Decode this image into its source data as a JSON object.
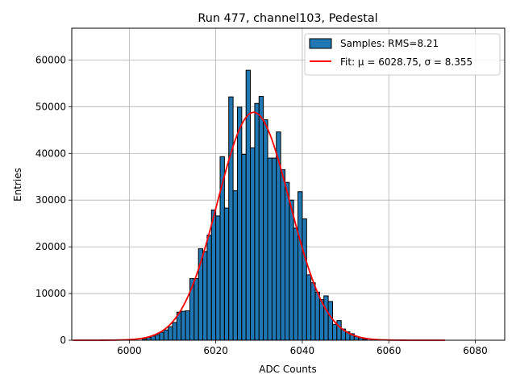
{
  "chart_data": {
    "type": "bar",
    "title": "Run 477, channel103, Pedestal",
    "xlabel": "ADC Counts",
    "ylabel": "Entries",
    "xlim": [
      5986.7,
      6086.8
    ],
    "ylim": [
      0,
      66800
    ],
    "xticks": [
      6000,
      6020,
      6040,
      6060,
      6080
    ],
    "yticks": [
      0,
      10000,
      20000,
      30000,
      40000,
      50000,
      60000
    ],
    "grid": true,
    "legend_position": "top-right",
    "legend": [
      {
        "label": "Samples: RMS=8.21",
        "kind": "patch",
        "color": "#1f77b4"
      },
      {
        "label": "Fit: μ = 6028.75, σ = 8.355",
        "kind": "line",
        "color": "#ff0000"
      }
    ],
    "bar_color": "#1f77b4",
    "bar_edge_color": "#000000",
    "bin_width": 1,
    "bins": {
      "x": [
        6003,
        6004,
        6005,
        6006,
        6007,
        6008,
        6009,
        6010,
        6011,
        6012,
        6013,
        6014,
        6015,
        6016,
        6017,
        6018,
        6019,
        6020,
        6021,
        6022,
        6023,
        6024,
        6025,
        6026,
        6027,
        6028,
        6029,
        6030,
        6031,
        6032,
        6033,
        6034,
        6035,
        6036,
        6037,
        6038,
        6039,
        6040,
        6041,
        6042,
        6043,
        6044,
        6045,
        6046,
        6047,
        6048,
        6049,
        6050,
        6051,
        6052,
        6053,
        6054
      ],
      "values": [
        300,
        600,
        900,
        1200,
        1700,
        2200,
        2900,
        3800,
        6000,
        6200,
        6300,
        13200,
        13200,
        19600,
        19000,
        22500,
        27900,
        26600,
        39300,
        28300,
        52100,
        32000,
        49900,
        39800,
        57800,
        41200,
        50700,
        52200,
        47200,
        39000,
        39000,
        44600,
        36500,
        33800,
        30000,
        24000,
        31800,
        26000,
        14000,
        12300,
        10300,
        8700,
        9500,
        8300,
        3400,
        4200,
        2400,
        1800,
        1400,
        800,
        500,
        200
      ]
    },
    "fit": {
      "mu": 6028.75,
      "sigma": 8.355,
      "amplitude": 48800,
      "x_range": [
        5987,
        6073
      ]
    }
  }
}
